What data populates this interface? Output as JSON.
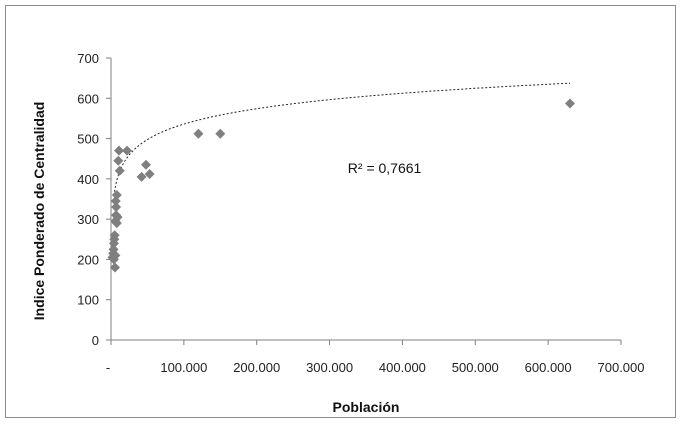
{
  "chart_data": {
    "type": "scatter",
    "title": "",
    "xlabel": "Población",
    "ylabel": "Indice Ponderado de Centralidad",
    "xlim": [
      0,
      700000
    ],
    "ylim": [
      0,
      700
    ],
    "x_ticks": [
      0,
      100000,
      200000,
      300000,
      400000,
      500000,
      600000,
      700000
    ],
    "x_tick_labels": [
      "-",
      "100.000",
      "200.000",
      "300.000",
      "400.000",
      "500.000",
      "600.000",
      "700.000"
    ],
    "y_ticks": [
      0,
      100,
      200,
      300,
      400,
      500,
      600,
      700
    ],
    "y_tick_labels": [
      "0",
      "100",
      "200",
      "300",
      "400",
      "500",
      "600",
      "700"
    ],
    "grid": false,
    "legend": "none",
    "marker_color": "#7f7f7f",
    "series": [
      {
        "values_xy": [
          [
            2000,
            205
          ],
          [
            3000,
            215
          ],
          [
            3500,
            225
          ],
          [
            4000,
            240
          ],
          [
            4500,
            250
          ],
          [
            5000,
            260
          ],
          [
            4000,
            200
          ],
          [
            5500,
            180
          ],
          [
            6000,
            210
          ],
          [
            6000,
            295
          ],
          [
            7000,
            310
          ],
          [
            7000,
            330
          ],
          [
            6500,
            345
          ],
          [
            8000,
            360
          ],
          [
            9000,
            305
          ],
          [
            8000,
            290
          ],
          [
            10000,
            445
          ],
          [
            11000,
            470
          ],
          [
            12000,
            420
          ],
          [
            22000,
            470
          ],
          [
            42000,
            405
          ],
          [
            48000,
            435
          ],
          [
            53000,
            412
          ],
          [
            120000,
            512
          ],
          [
            150000,
            512
          ],
          [
            630000,
            587
          ]
        ]
      }
    ],
    "trendline": {
      "type": "logarithmic",
      "style": "dotted",
      "x_range": [
        4000,
        630000
      ],
      "a": 55.2,
      "b": -99.6
    },
    "annotation": {
      "text": "R² = 0,7661",
      "x": 325000,
      "y": 415
    }
  }
}
